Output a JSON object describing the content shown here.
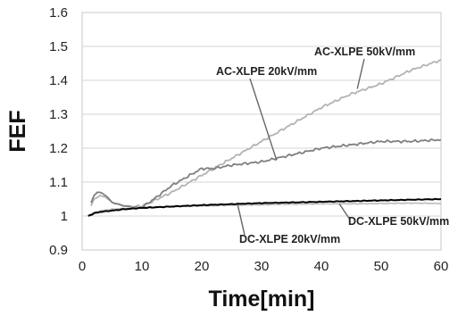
{
  "chart_data": {
    "type": "line",
    "xlabel": "Time[min]",
    "ylabel": "FEF",
    "xlim": [
      0,
      60
    ],
    "ylim": [
      0.9,
      1.6
    ],
    "x_ticks": [
      0,
      10,
      20,
      30,
      40,
      50,
      60
    ],
    "y_ticks": [
      0.9,
      1,
      1.1,
      1.2,
      1.3,
      1.4,
      1.5,
      1.6
    ],
    "grid": "horizontal",
    "legend": "none",
    "series": [
      {
        "name": "AC-XLPE 50kV/mm",
        "color": "#b3b3b3",
        "x": [
          1.5,
          2,
          3,
          4,
          5,
          7,
          9,
          10,
          12,
          15,
          18,
          20,
          22,
          25,
          30,
          35,
          40,
          45,
          50,
          55,
          60
        ],
        "y": [
          1.03,
          1.05,
          1.06,
          1.055,
          1.04,
          1.03,
          1.028,
          1.03,
          1.045,
          1.07,
          1.1,
          1.12,
          1.14,
          1.17,
          1.22,
          1.27,
          1.32,
          1.36,
          1.39,
          1.43,
          1.46
        ]
      },
      {
        "name": "AC-XLPE 20kV/mm",
        "color": "#7f7f7f",
        "x": [
          1.5,
          2,
          2.5,
          3,
          4,
          5,
          7,
          9,
          10,
          12,
          15,
          18,
          20,
          22,
          25,
          30,
          35,
          40,
          45,
          50,
          55,
          60
        ],
        "y": [
          1.04,
          1.06,
          1.07,
          1.07,
          1.06,
          1.04,
          1.03,
          1.025,
          1.025,
          1.05,
          1.09,
          1.12,
          1.14,
          1.14,
          1.15,
          1.16,
          1.18,
          1.2,
          1.21,
          1.22,
          1.22,
          1.225
        ]
      },
      {
        "name": "DC-XLPE 50kV/mm",
        "color": "#c0c0c0",
        "x": [
          1,
          2,
          3,
          5,
          7,
          10,
          15,
          20,
          25,
          30,
          35,
          40,
          45,
          50,
          55,
          60
        ],
        "y": [
          1.0,
          1.01,
          1.015,
          1.02,
          1.022,
          1.025,
          1.028,
          1.03,
          1.032,
          1.033,
          1.035,
          1.036,
          1.036,
          1.037,
          1.038,
          1.037
        ]
      },
      {
        "name": "DC-XLPE 20kV/mm",
        "color": "#000000",
        "x": [
          1,
          2,
          3,
          5,
          7,
          10,
          15,
          20,
          25,
          30,
          35,
          40,
          45,
          50,
          55,
          60
        ],
        "y": [
          1.0,
          1.008,
          1.012,
          1.016,
          1.02,
          1.024,
          1.028,
          1.032,
          1.035,
          1.038,
          1.04,
          1.042,
          1.044,
          1.046,
          1.048,
          1.05
        ]
      }
    ],
    "annotations": [
      {
        "text": "AC-XLPE 50kV/mm",
        "series": "AC-XLPE 50kV/mm",
        "point_x": 46,
        "point_y": 1.375
      },
      {
        "text": "AC-XLPE 20kV/mm",
        "series": "AC-XLPE 20kV/mm",
        "point_x": 32.5,
        "point_y": 1.165
      },
      {
        "text": "DC-XLPE 50kV/mm",
        "series": "DC-XLPE 50kV/mm",
        "point_x": 43,
        "point_y": 1.036
      },
      {
        "text": "DC-XLPE 20kV/mm",
        "series": "DC-XLPE 20kV/mm",
        "point_x": 26,
        "point_y": 1.034
      }
    ]
  }
}
